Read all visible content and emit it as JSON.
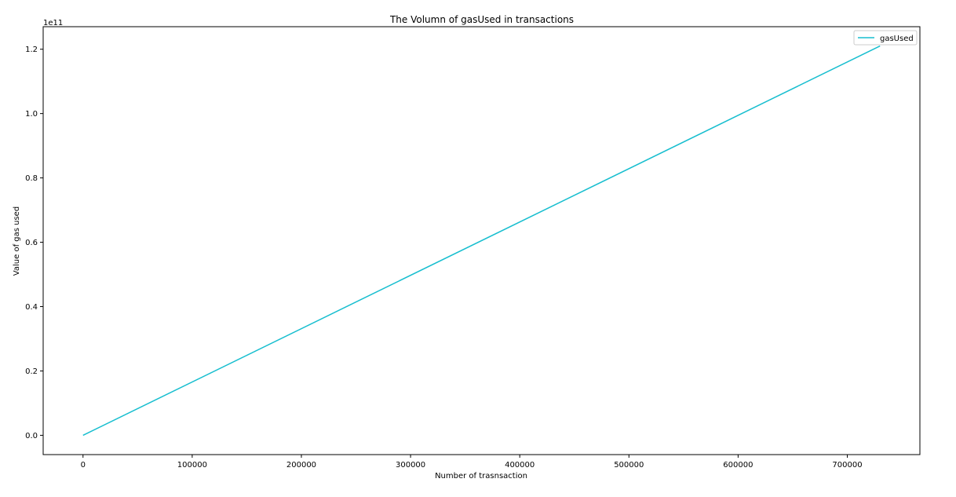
{
  "chart_data": {
    "type": "line",
    "title": "The Volumn of gasUsed in transactions",
    "xlabel": "Number of trasnsaction",
    "ylabel": "Value of gas used",
    "y_offset_label": "1e11",
    "x_ticks": [
      0,
      100000,
      200000,
      300000,
      400000,
      500000,
      600000,
      700000
    ],
    "x_tick_labels": [
      "0",
      "100000",
      "200000",
      "300000",
      "400000",
      "500000",
      "600000",
      "700000"
    ],
    "y_ticks": [
      0.0,
      0.2,
      0.4,
      0.6,
      0.8,
      1.0,
      1.2
    ],
    "y_tick_labels": [
      "0.0",
      "0.2",
      "0.4",
      "0.6",
      "0.8",
      "1.0",
      "1.2"
    ],
    "xlim": [
      -36500,
      766500
    ],
    "ylim": [
      -0.06,
      1.27
    ],
    "grid": false,
    "legend_position": "upper right",
    "series": [
      {
        "name": "gasUsed",
        "color": "#17becf",
        "x": [
          0,
          730000
        ],
        "y": [
          0.0,
          1.21
        ]
      }
    ]
  }
}
